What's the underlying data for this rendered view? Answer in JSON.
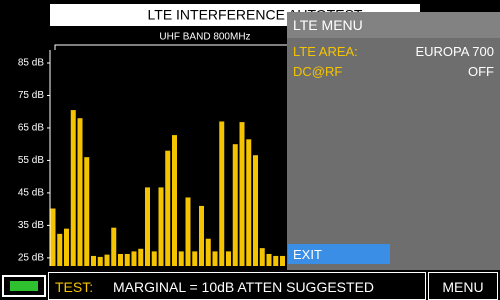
{
  "chart_data": {
    "type": "bar",
    "title": "LTE INTERFERENCE AUTOTEST",
    "subtitle": "UHF BAND 800MHz",
    "categories": [
      null,
      null,
      null,
      null,
      null,
      null,
      null,
      null,
      null,
      null,
      null,
      null,
      null,
      null,
      null,
      null,
      null,
      null,
      null,
      null,
      null,
      null,
      null,
      null,
      null,
      null,
      null,
      null,
      null,
      null,
      null,
      null,
      null,
      null,
      null
    ],
    "values": [
      40.2,
      32.4,
      34,
      70.5,
      68,
      56,
      25.6,
      25.3,
      26,
      34.3,
      26.2,
      26.2,
      27,
      27.8,
      46.7,
      27,
      46.7,
      58,
      62.8,
      27,
      43.6,
      27,
      41,
      30.9,
      27,
      67,
      27,
      60,
      66.8,
      61.5,
      56.6,
      28,
      26.2,
      25.6,
      25.6
    ],
    "color": "#f5c400",
    "ylim": [
      22.5,
      89
    ],
    "yticks": [
      {
        "value": 25,
        "label": "25 dB"
      },
      {
        "value": 35,
        "label": "35 dB"
      },
      {
        "value": 45,
        "label": "45 dB"
      },
      {
        "value": 55,
        "label": "55 dB"
      },
      {
        "value": 65,
        "label": "65 dB"
      },
      {
        "value": 75,
        "label": "75 dB"
      },
      {
        "value": 85,
        "label": "85 dB"
      }
    ],
    "grid": false
  },
  "menu": {
    "title": "LTE MENU",
    "items": [
      {
        "label": "LTE AREA:",
        "value": "EUROPA 700"
      },
      {
        "label": "DC@RF",
        "value": "OFF"
      }
    ],
    "exit": "EXIT"
  },
  "status": {
    "test_label": "TEST:",
    "message": "MARGINAL = 10dB ATTEN SUGGESTED",
    "menu_button": "MENU"
  }
}
